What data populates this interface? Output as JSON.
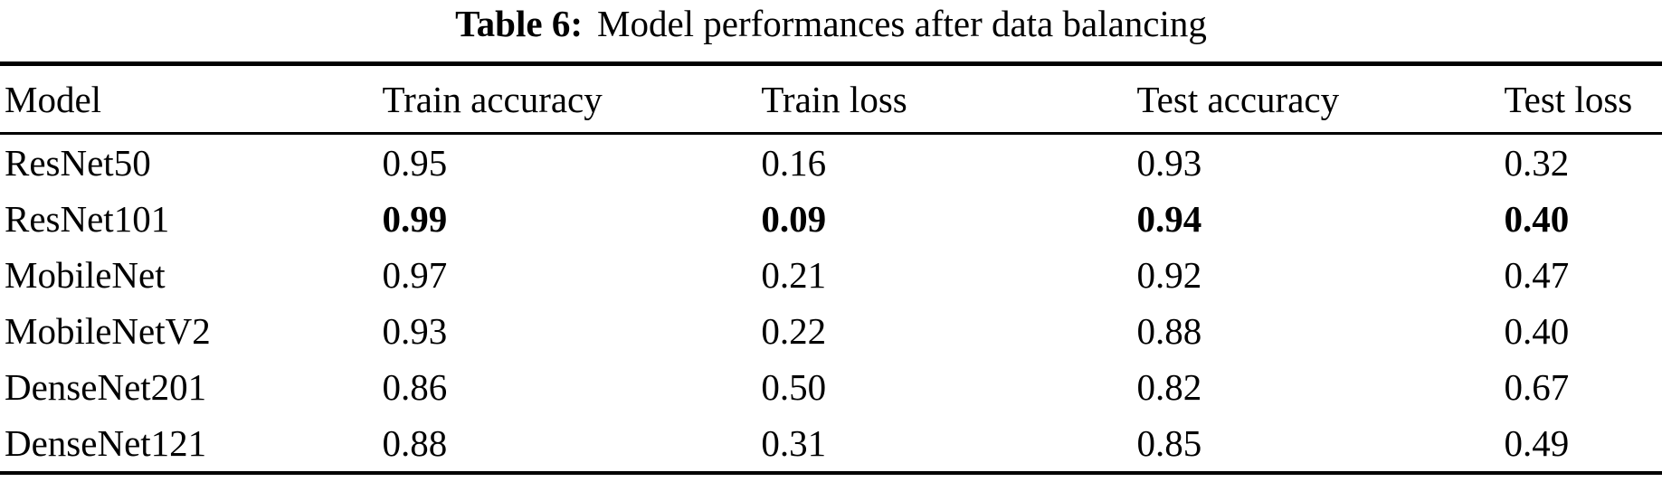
{
  "caption": {
    "label": "Table 6:",
    "text": "Model performances after data balancing"
  },
  "table": {
    "columns": [
      "Model",
      "Train accuracy",
      "Train loss",
      "Test accuracy",
      "Test loss"
    ],
    "rows": [
      {
        "model": "ResNet50",
        "values": [
          "0.95",
          "0.16",
          "0.93",
          "0.32"
        ],
        "bold": false
      },
      {
        "model": "ResNet101",
        "values": [
          "0.99",
          "0.09",
          "0.94",
          "0.40"
        ],
        "bold": true
      },
      {
        "model": "MobileNet",
        "values": [
          "0.97",
          "0.21",
          "0.92",
          "0.47"
        ],
        "bold": false
      },
      {
        "model": "MobileNetV2",
        "values": [
          "0.93",
          "0.22",
          "0.88",
          "0.40"
        ],
        "bold": false
      },
      {
        "model": "DenseNet201",
        "values": [
          "0.86",
          "0.50",
          "0.82",
          "0.67"
        ],
        "bold": false
      },
      {
        "model": "DenseNet121",
        "values": [
          "0.88",
          "0.31",
          "0.85",
          "0.49"
        ],
        "bold": false
      }
    ]
  },
  "colors": {
    "text": "#000000",
    "background": "#ffffff",
    "rule": "#000000"
  }
}
